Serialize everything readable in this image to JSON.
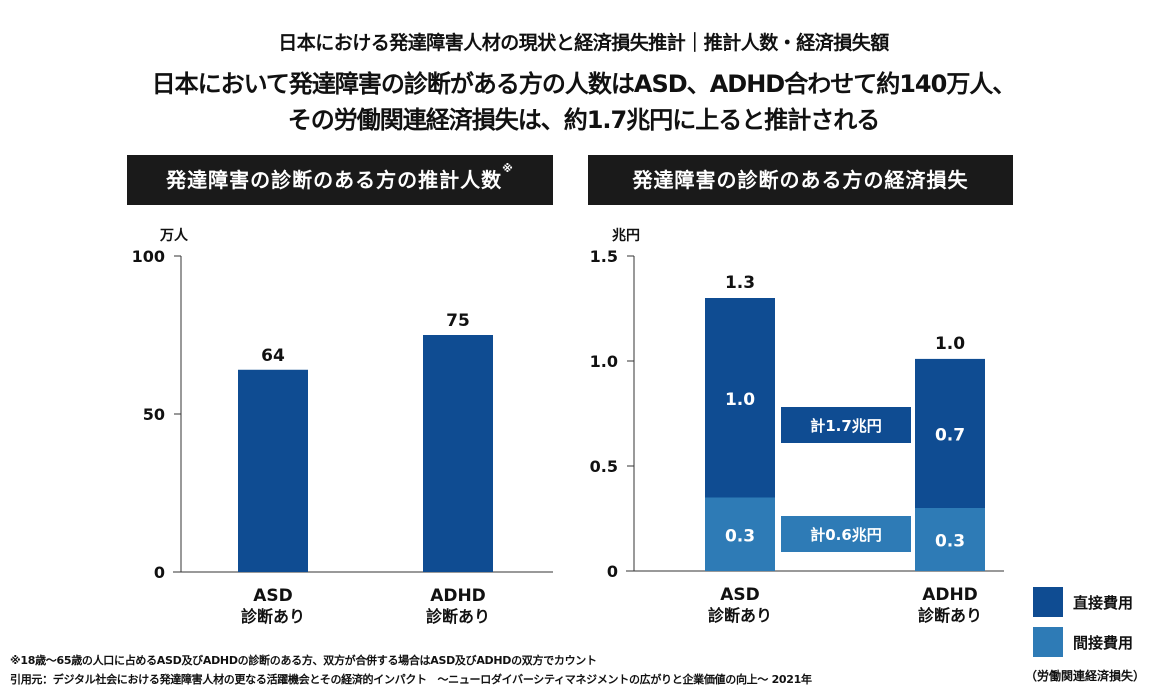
{
  "header": {
    "title": "日本における発達障害人材の現状と経済損失推計｜推計人数・経済損失額",
    "headline_line1": "日本において発達障害の診断がある方の人数はASD、ADHD合わせて約140万人、",
    "headline_line2": "その労働関連経済損失は、約1.7兆円に上ると推計される"
  },
  "colors": {
    "direct": "#0f4c92",
    "indirect": "#2e7bb6",
    "panel_header": "#1a1a1a"
  },
  "chart_data": [
    {
      "type": "bar",
      "title": "発達障害の診断のある方の推計人数",
      "title_mark": "※",
      "ylabel": "万人",
      "ylim": [
        0,
        100
      ],
      "yticks": [
        "0",
        "50",
        "100"
      ],
      "ytick_values": [
        0,
        50,
        100
      ],
      "categories": [
        {
          "line1": "ASD",
          "line2": "診断あり"
        },
        {
          "line1": "ADHD",
          "line2": "診断あり"
        }
      ],
      "values": [
        64,
        75
      ],
      "value_labels": [
        "64",
        "75"
      ]
    },
    {
      "type": "bar",
      "stacked": true,
      "title": "発達障害の診断のある方の経済損失",
      "ylabel": "兆円",
      "ylim": [
        0,
        1.5
      ],
      "yticks": [
        "0",
        "0.5",
        "1.0",
        "1.5"
      ],
      "ytick_values": [
        0,
        0.5,
        1.0,
        1.5
      ],
      "categories": [
        {
          "line1": "ASD",
          "line2": "診断あり"
        },
        {
          "line1": "ADHD",
          "line2": "診断あり"
        }
      ],
      "series": [
        {
          "name": "間接費用",
          "values": [
            0.35,
            0.3
          ],
          "labels": [
            "0.3",
            "0.3"
          ]
        },
        {
          "name": "直接費用",
          "values": [
            0.95,
            0.71
          ],
          "labels": [
            "1.0",
            "0.7"
          ]
        }
      ],
      "totals": [
        "1.3",
        "1.0"
      ],
      "total_values": [
        1.3,
        1.01
      ],
      "annotations": {
        "direct_total": "計1.7兆円",
        "indirect_total": "計0.6兆円"
      },
      "legend": {
        "position": "bottom-right",
        "items": [
          "直接費用",
          "間接費用"
        ],
        "note": "（労働関連経済損失）"
      }
    }
  ],
  "footnotes": {
    "note": "※18歳〜65歳の人口に占めるASD及びADHDの診断のある方、双方が合併する場合はASD及びADHDの双方でカウント",
    "source": "引用元：デジタル社会における発達障害人材の更なる活躍機会とその経済的インパクト　〜ニューロダイバーシティマネジメントの広がりと企業価値の向上〜 2021年"
  }
}
